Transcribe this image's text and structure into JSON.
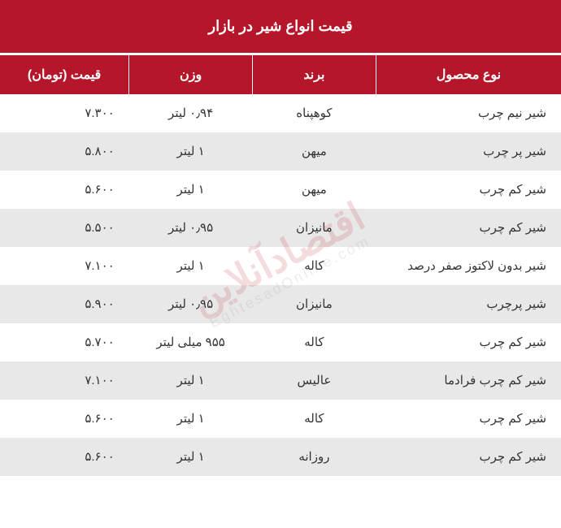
{
  "title": "قیمت انواع شیر در بازار",
  "columns": {
    "product": "نوع محصول",
    "brand": "برند",
    "weight": "وزن",
    "price": "قیمت (تومان)"
  },
  "rows": [
    {
      "product": "شیر نیم چرب",
      "brand": "کوهپناه",
      "weight": "۰٫۹۴ لیتر",
      "price": "۷.۳۰۰"
    },
    {
      "product": "شیر پر چرب",
      "brand": "میهن",
      "weight": "۱ لیتر",
      "price": "۵.۸۰۰"
    },
    {
      "product": "شیر کم چرب",
      "brand": "میهن",
      "weight": "۱ لیتر",
      "price": "۵.۶۰۰"
    },
    {
      "product": "شیر کم چرب",
      "brand": "مانیزان",
      "weight": "۰٫۹۵ لیتر",
      "price": "۵.۵۰۰"
    },
    {
      "product": "شیر بدون لاکتوز صفر درصد",
      "brand": "کاله",
      "weight": "۱ لیتر",
      "price": "۷.۱۰۰"
    },
    {
      "product": "شیر پرچرب",
      "brand": "مانیزان",
      "weight": "۰٫۹۵ لیتر",
      "price": "۵.۹۰۰"
    },
    {
      "product": "شیر کم چرب",
      "brand": "کاله",
      "weight": "۹۵۵ میلی لیتر",
      "price": "۵.۷۰۰"
    },
    {
      "product": "شیر کم چرب فرادما",
      "brand": "عالیس",
      "weight": "۱ لیتر",
      "price": "۷.۱۰۰"
    },
    {
      "product": "شیر کم چرب",
      "brand": "کاله",
      "weight": "۱ لیتر",
      "price": "۵.۶۰۰"
    },
    {
      "product": "شیر کم چرب",
      "brand": "روزانه",
      "weight": "۱ لیتر",
      "price": "۵.۶۰۰"
    }
  ],
  "watermark": {
    "main": "اقتصادآنلاین",
    "sub": "EghtesadOnline.com"
  },
  "colors": {
    "header_bg": "#b5162a",
    "header_text": "#ffffff",
    "row_odd": "#ffffff",
    "row_even": "#e8e8e8",
    "text": "#333333"
  }
}
